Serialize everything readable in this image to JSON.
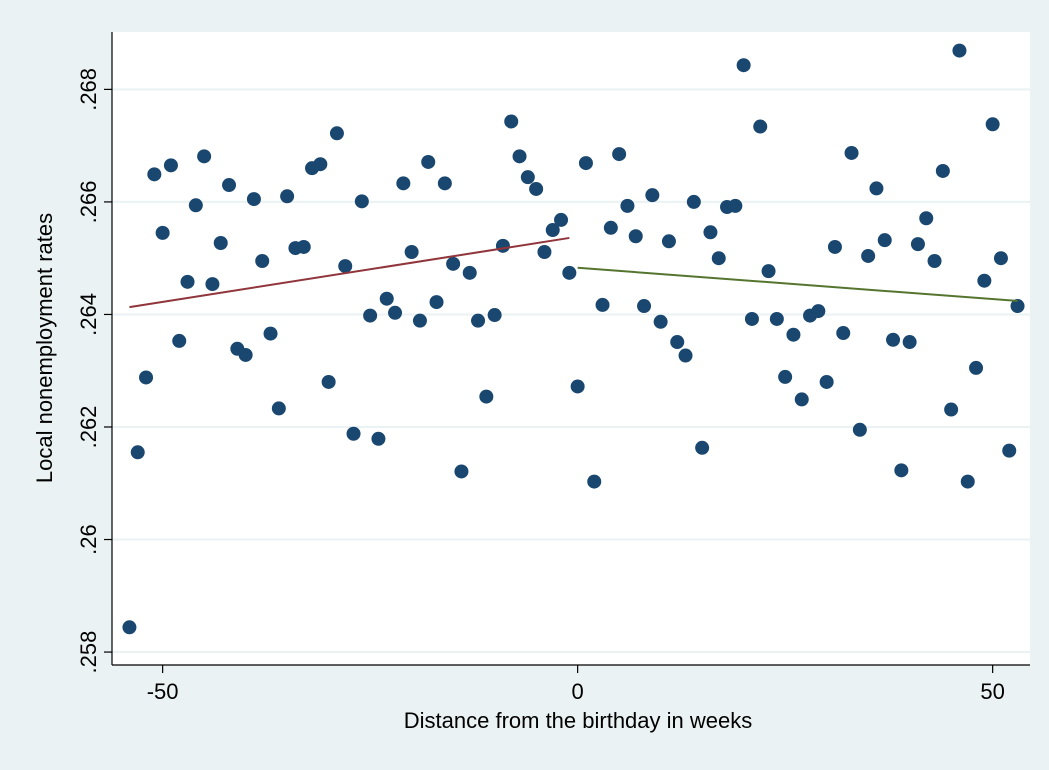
{
  "chart_data": {
    "type": "scatter",
    "x_label": "Distance from the birthday in weeks",
    "y_label": "Local nonemployment rates",
    "x": [
      -54,
      -53,
      -52,
      -51,
      -50,
      -49,
      -48,
      -47,
      -46,
      -45,
      -44,
      -43,
      -42,
      -41,
      -40,
      -39,
      -38,
      -37,
      -36,
      -35,
      -34,
      -33,
      -32,
      -31,
      -30,
      -29,
      -28,
      -27,
      -26,
      -25,
      -24,
      -23,
      -22,
      -21,
      -20,
      -19,
      -18,
      -17,
      -16,
      -15,
      -14,
      -13,
      -12,
      -11,
      -10,
      -9,
      -8,
      -7,
      -6,
      -5,
      -4,
      -3,
      -2,
      -1,
      0,
      1,
      2,
      3,
      4,
      5,
      6,
      7,
      8,
      9,
      10,
      11,
      12,
      13,
      14,
      15,
      16,
      17,
      18,
      19,
      20,
      21,
      22,
      23,
      24,
      25,
      26,
      27,
      28,
      29,
      30,
      31,
      32,
      33,
      34,
      35,
      36,
      37,
      38,
      39,
      40,
      41,
      42,
      43,
      44,
      45,
      46,
      47,
      48,
      49,
      50,
      51,
      52,
      53
    ],
    "values": [
      0.25844,
      0.26155,
      0.26288,
      0.26649,
      0.26545,
      0.26665,
      0.26353,
      0.26458,
      0.26594,
      0.26681,
      0.26454,
      0.26527,
      0.2663,
      0.26339,
      0.26328,
      0.26605,
      0.26495,
      0.26366,
      0.26233,
      0.2661,
      0.26518,
      0.2652,
      0.2666,
      0.26667,
      0.2628,
      0.26722,
      0.26486,
      0.26188,
      0.26601,
      0.26398,
      0.26179,
      0.26428,
      0.26403,
      0.26633,
      0.26511,
      0.26389,
      0.26671,
      0.26422,
      0.26633,
      0.2649,
      0.26121,
      0.26474,
      0.26389,
      0.26254,
      0.26399,
      0.26522,
      0.26743,
      0.26681,
      0.26644,
      0.26623,
      0.26511,
      0.2655,
      0.26568,
      0.26474,
      0.26272,
      0.26669,
      0.26103,
      0.26417,
      0.26554,
      0.26685,
      0.26593,
      0.26539,
      0.26415,
      0.26612,
      0.26387,
      0.2653,
      0.26351,
      0.26327,
      0.266,
      0.26163,
      0.26546,
      0.265,
      0.26591,
      0.26593,
      0.26843,
      0.26392,
      0.26734,
      0.26477,
      0.26392,
      0.26289,
      0.26364,
      0.26249,
      0.26398,
      0.26406,
      0.2628,
      0.2652,
      0.26367,
      0.26687,
      0.26195,
      0.26504,
      0.26624,
      0.26532,
      0.26355,
      0.26123,
      0.26351,
      0.26525,
      0.26571,
      0.26495,
      0.26655,
      0.26231,
      0.26869,
      0.26103,
      0.26305,
      0.2646,
      0.26738,
      0.265,
      0.26158,
      0.26415
    ],
    "color": "#1a476f",
    "fit_lines": [
      {
        "x": [
          -54,
          -1
        ],
        "values": [
          0.26413,
          0.26536
        ],
        "color": "#90353b"
      },
      {
        "x": [
          0,
          53
        ],
        "values": [
          0.26483,
          0.26424
        ],
        "color": "#55752f"
      }
    ],
    "xlim": [
      -56.1,
      54.5
    ],
    "ylim": [
      0.25777,
      0.26902
    ],
    "xticks": [
      -50,
      0,
      50
    ],
    "yticks": [
      {
        "value": 0.258,
        "label": ".258"
      },
      {
        "value": 0.26,
        "label": ".26"
      },
      {
        "value": 0.262,
        "label": ".262"
      },
      {
        "value": 0.264,
        "label": ".264"
      },
      {
        "value": 0.266,
        "label": ".266"
      },
      {
        "value": 0.268,
        "label": ".268"
      }
    ],
    "grid": true
  }
}
